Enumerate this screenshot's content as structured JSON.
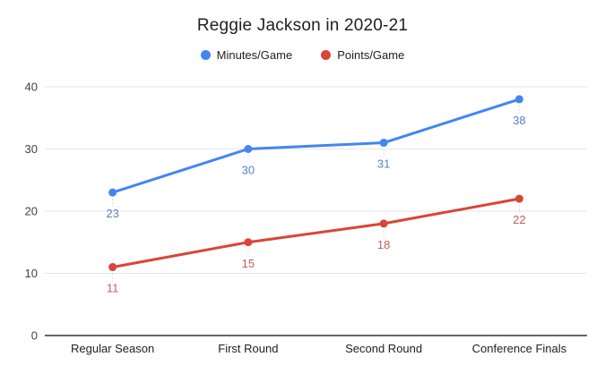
{
  "chart_data": {
    "type": "line",
    "title": "Reggie Jackson in 2020-21",
    "categories": [
      "Regular Season",
      "First Round",
      "Second Round",
      "Conference Finals"
    ],
    "series": [
      {
        "name": "Minutes/Game",
        "values": [
          23,
          30,
          31,
          38
        ],
        "color": "#4285f4",
        "label_color": "#5a7ec6"
      },
      {
        "name": "Points/Game",
        "values": [
          11,
          15,
          18,
          22
        ],
        "color": "#db4437",
        "label_color": "#c85f55"
      }
    ],
    "ylim": [
      0,
      40
    ],
    "yticks": [
      0,
      10,
      20,
      30,
      40
    ],
    "grid": "horizontal",
    "legend_position": "top",
    "data_labels_shown": true,
    "background": "#ffffff",
    "axis_color": "#333333",
    "gridline_color": "#e6e6e6",
    "connector_color": "#d9d9d9",
    "tick_label_color": "#424242",
    "category_label_color": "#202124"
  }
}
